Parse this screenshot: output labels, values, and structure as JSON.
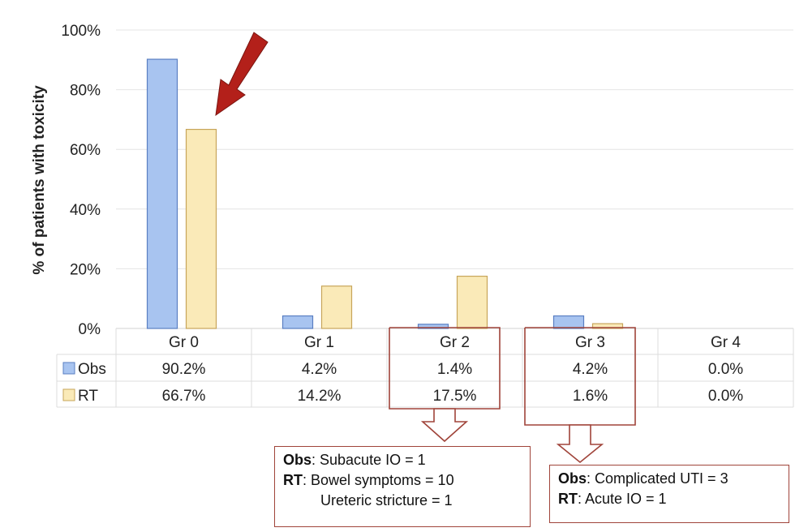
{
  "chart_data": {
    "type": "bar",
    "ylabel": "% of patients with toxicity",
    "ylim": [
      0,
      100
    ],
    "yticks": [
      "0%",
      "20%",
      "40%",
      "60%",
      "80%",
      "100%"
    ],
    "categories": [
      "Gr 0",
      "Gr 1",
      "Gr 2",
      "Gr 3",
      "Gr 4"
    ],
    "series": [
      {
        "name": "Obs",
        "color": "#a8c4f0",
        "values": [
          90.2,
          4.2,
          1.4,
          4.2,
          0.0
        ],
        "labels": [
          "90.2%",
          "4.2%",
          "1.4%",
          "4.2%",
          "0.0%"
        ]
      },
      {
        "name": "RT",
        "color": "#faeab8",
        "values": [
          66.7,
          14.2,
          17.5,
          1.6,
          0.0
        ],
        "labels": [
          "66.7%",
          "14.2%",
          "17.5%",
          "1.6%",
          "0.0%"
        ]
      }
    ],
    "grid": true,
    "legend": "data-table"
  },
  "annotations": {
    "gr2": {
      "line1_bold": "Obs",
      "line1_text": ": Subacute IO = 1",
      "line2_bold": "RT",
      "line2_text": ": Bowel symptoms = 10",
      "line3_text": "Ureteric stricture = 1"
    },
    "gr3": {
      "line1_bold": "Obs",
      "line1_text": ": Complicated UTI = 3",
      "line2_bold": "RT",
      "line2_text": ": Acute IO = 1"
    }
  },
  "colors": {
    "obs_border": "#5a7fc2",
    "rt_border": "#c7a55a",
    "arrow": "#b3201a",
    "callout": "#a0443a"
  }
}
